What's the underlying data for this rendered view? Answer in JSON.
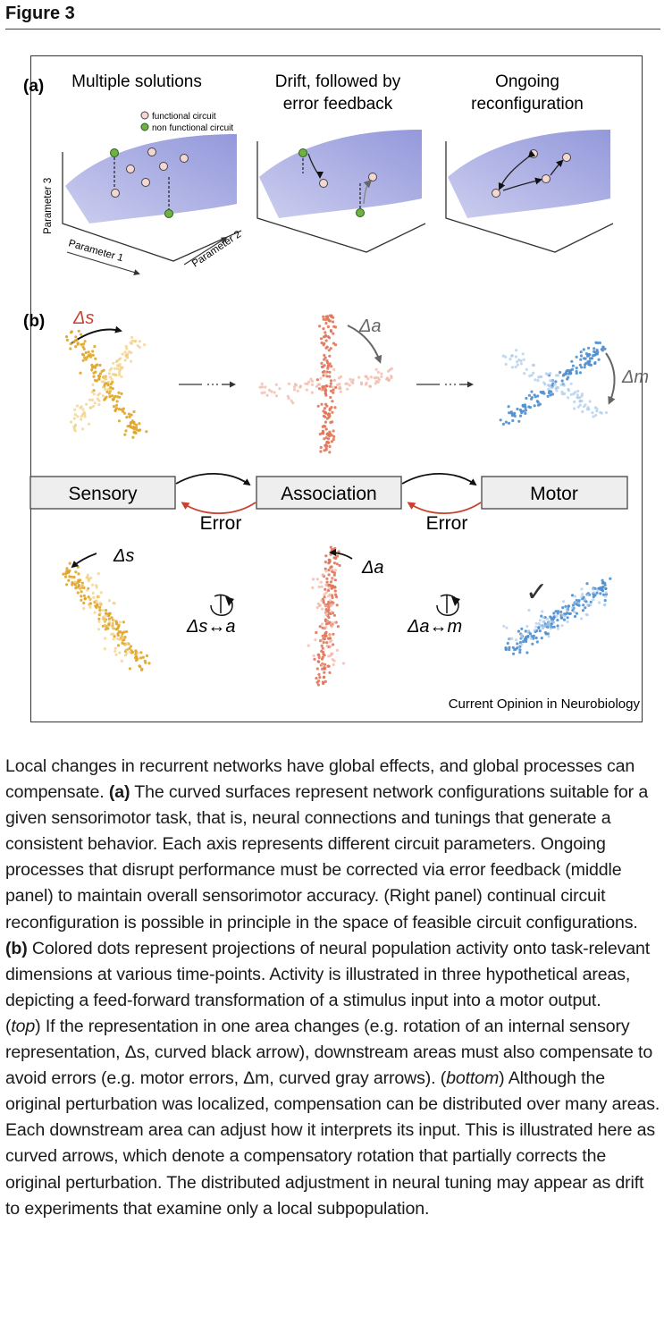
{
  "figure_title": "Figure 3",
  "panel_a": {
    "label": "(a)",
    "titles": [
      "Multiple solutions",
      "Drift, followed by",
      "error feedback",
      "Ongoing",
      "reconfiguration"
    ],
    "legend": {
      "functional": "functional circuit",
      "nonfunctional": "non functional circuit"
    },
    "axes": {
      "p1": "Parameter 1",
      "p2": "Parameter 2",
      "p3": "Parameter 3"
    }
  },
  "panel_b": {
    "label": "(b)",
    "delta_s": "Δs",
    "delta_a": "Δa",
    "delta_m": "Δm",
    "boxes": {
      "sensory": "Sensory",
      "association": "Association",
      "motor": "Motor"
    },
    "error_label": "Error",
    "rot_s_a": "Δs↔a",
    "rot_a_m": "Δa↔m",
    "check": "✓",
    "colors": {
      "sensory": "#e0a526",
      "association": "#e0765a",
      "motor": "#4f8fcf"
    }
  },
  "credit": "Current Opinion in Neurobiology",
  "caption": {
    "p1": "Local changes in recurrent networks have global effects, and global processes can compensate.",
    "a_label": "(a)",
    "p2": "The curved surfaces represent network configurations suitable for a given sensorimotor task, that is, neural connections and tunings that generate a consistent behavior. Each axis represents different circuit parameters. Ongoing processes that disrupt performance must be corrected via error feedback (middle panel) to maintain overall sensorimotor accuracy. (Right panel) continual circuit reconfiguration is possible in principle in the space of feasible circuit configurations.",
    "b_label": "(b)",
    "p3": "Colored dots represent projections of neural population activity onto task-relevant dimensions at various time-points. Activity is illustrated in three hypothetical areas, depicting a feed-forward transformation of a stimulus input into a motor output.",
    "top": "top",
    "p4": "If the representation in one area changes (e.g. rotation of an internal sensory representation, Δs, curved black arrow), downstream areas must also compensate to avoid errors (e.g. motor errors, Δm, curved gray arrows).",
    "bottom": "bottom",
    "p5": "Although the original perturbation was localized, compensation can be distributed over many areas. Each downstream area can adjust how it interprets its input. This is illustrated here as curved arrows, which denote a compensatory rotation that partially corrects the original perturbation. The distributed adjustment in neural tuning may appear as drift to experiments that examine only a local subpopulation."
  }
}
